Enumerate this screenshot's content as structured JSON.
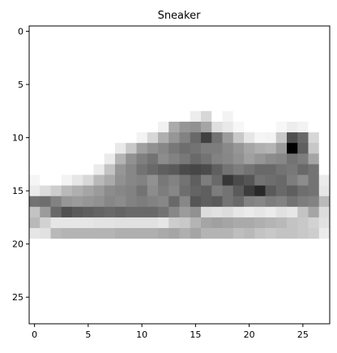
{
  "chart_data": {
    "type": "heatmap",
    "title": "Sneaker",
    "xlabel": "",
    "ylabel": "",
    "colormap": "gray_r",
    "value_range": [
      0,
      255
    ],
    "grid": false,
    "xlim": [
      -0.5,
      27.5
    ],
    "ylim": [
      27.5,
      -0.5
    ],
    "x_ticks": [
      0,
      5,
      10,
      15,
      20,
      25
    ],
    "y_ticks": [
      0,
      5,
      10,
      15,
      20,
      25
    ],
    "x_tick_labels": [
      "0",
      "5",
      "10",
      "15",
      "20",
      "25"
    ],
    "y_tick_labels": [
      "0",
      "5",
      "10",
      "15",
      "20",
      "25"
    ],
    "rows": 28,
    "cols": 28,
    "sparse_nonzero": [
      [
        8,
        15,
        18
      ],
      [
        8,
        16,
        40
      ],
      [
        8,
        18,
        12
      ],
      [
        9,
        12,
        14
      ],
      [
        9,
        13,
        85
      ],
      [
        9,
        14,
        105
      ],
      [
        9,
        15,
        110
      ],
      [
        9,
        16,
        90
      ],
      [
        9,
        17,
        32
      ],
      [
        9,
        18,
        22
      ],
      [
        9,
        19,
        8
      ],
      [
        9,
        23,
        8
      ],
      [
        9,
        24,
        18
      ],
      [
        9,
        25,
        12
      ],
      [
        10,
        10,
        12
      ],
      [
        10,
        11,
        40
      ],
      [
        10,
        12,
        80
      ],
      [
        10,
        13,
        105
      ],
      [
        10,
        14,
        125
      ],
      [
        10,
        15,
        150
      ],
      [
        10,
        16,
        190
      ],
      [
        10,
        17,
        140
      ],
      [
        10,
        18,
        100
      ],
      [
        10,
        19,
        55
      ],
      [
        10,
        20,
        25
      ],
      [
        10,
        21,
        10
      ],
      [
        10,
        22,
        12
      ],
      [
        10,
        23,
        55
      ],
      [
        10,
        24,
        175
      ],
      [
        10,
        25,
        150
      ],
      [
        10,
        26,
        40
      ],
      [
        11,
        8,
        22
      ],
      [
        11,
        9,
        55
      ],
      [
        11,
        10,
        95
      ],
      [
        11,
        11,
        110
      ],
      [
        11,
        12,
        120
      ],
      [
        11,
        13,
        135
      ],
      [
        11,
        14,
        145
      ],
      [
        11,
        15,
        140
      ],
      [
        11,
        16,
        130
      ],
      [
        11,
        17,
        130
      ],
      [
        11,
        18,
        118
      ],
      [
        11,
        19,
        105
      ],
      [
        11,
        20,
        90
      ],
      [
        11,
        21,
        80
      ],
      [
        11,
        22,
        75
      ],
      [
        11,
        23,
        100
      ],
      [
        11,
        24,
        255
      ],
      [
        11,
        25,
        160
      ],
      [
        11,
        26,
        55
      ],
      [
        12,
        7,
        20
      ],
      [
        12,
        8,
        75
      ],
      [
        12,
        9,
        110
      ],
      [
        12,
        10,
        128
      ],
      [
        12,
        11,
        140
      ],
      [
        12,
        12,
        115
      ],
      [
        12,
        13,
        125
      ],
      [
        12,
        14,
        135
      ],
      [
        12,
        15,
        150
      ],
      [
        12,
        16,
        140
      ],
      [
        12,
        17,
        125
      ],
      [
        12,
        18,
        120
      ],
      [
        12,
        19,
        110
      ],
      [
        12,
        20,
        95
      ],
      [
        12,
        21,
        105
      ],
      [
        12,
        22,
        115
      ],
      [
        12,
        23,
        120
      ],
      [
        12,
        24,
        140
      ],
      [
        12,
        25,
        130
      ],
      [
        12,
        26,
        90
      ],
      [
        13,
        6,
        20
      ],
      [
        13,
        7,
        60
      ],
      [
        13,
        8,
        105
      ],
      [
        13,
        9,
        120
      ],
      [
        13,
        10,
        140
      ],
      [
        13,
        11,
        150
      ],
      [
        13,
        12,
        160
      ],
      [
        13,
        13,
        165
      ],
      [
        13,
        14,
        180
      ],
      [
        13,
        15,
        185
      ],
      [
        13,
        16,
        180
      ],
      [
        13,
        17,
        160
      ],
      [
        13,
        18,
        140
      ],
      [
        13,
        19,
        130
      ],
      [
        13,
        20,
        140
      ],
      [
        13,
        21,
        150
      ],
      [
        13,
        22,
        150
      ],
      [
        13,
        23,
        140
      ],
      [
        13,
        24,
        135
      ],
      [
        13,
        25,
        150
      ],
      [
        13,
        26,
        140
      ],
      [
        14,
        0,
        10
      ],
      [
        14,
        3,
        12
      ],
      [
        14,
        4,
        25
      ],
      [
        14,
        5,
        40
      ],
      [
        14,
        6,
        70
      ],
      [
        14,
        7,
        85
      ],
      [
        14,
        8,
        110
      ],
      [
        14,
        9,
        120
      ],
      [
        14,
        10,
        125
      ],
      [
        14,
        11,
        110
      ],
      [
        14,
        12,
        135
      ],
      [
        14,
        13,
        125
      ],
      [
        14,
        14,
        140
      ],
      [
        14,
        15,
        160
      ],
      [
        14,
        16,
        130
      ],
      [
        14,
        17,
        150
      ],
      [
        14,
        18,
        200
      ],
      [
        14,
        19,
        180
      ],
      [
        14,
        20,
        170
      ],
      [
        14,
        21,
        140
      ],
      [
        14,
        22,
        145
      ],
      [
        14,
        23,
        150
      ],
      [
        14,
        24,
        130
      ],
      [
        14,
        25,
        115
      ],
      [
        14,
        26,
        140
      ],
      [
        14,
        27,
        20
      ],
      [
        15,
        0,
        20
      ],
      [
        15,
        1,
        35
      ],
      [
        15,
        2,
        50
      ],
      [
        15,
        3,
        70
      ],
      [
        15,
        4,
        80
      ],
      [
        15,
        5,
        90
      ],
      [
        15,
        6,
        100
      ],
      [
        15,
        7,
        115
      ],
      [
        15,
        8,
        120
      ],
      [
        15,
        9,
        125
      ],
      [
        15,
        10,
        140
      ],
      [
        15,
        11,
        115
      ],
      [
        15,
        12,
        130
      ],
      [
        15,
        13,
        120
      ],
      [
        15,
        14,
        145
      ],
      [
        15,
        15,
        155
      ],
      [
        15,
        16,
        160
      ],
      [
        15,
        17,
        130
      ],
      [
        15,
        18,
        140
      ],
      [
        15,
        19,
        165
      ],
      [
        15,
        20,
        195
      ],
      [
        15,
        21,
        215
      ],
      [
        15,
        22,
        165
      ],
      [
        15,
        23,
        150
      ],
      [
        15,
        24,
        160
      ],
      [
        15,
        25,
        145
      ],
      [
        15,
        26,
        140
      ],
      [
        15,
        27,
        25
      ],
      [
        16,
        0,
        140
      ],
      [
        16,
        1,
        145
      ],
      [
        16,
        2,
        125
      ],
      [
        16,
        3,
        105
      ],
      [
        16,
        4,
        100
      ],
      [
        16,
        5,
        105
      ],
      [
        16,
        6,
        110
      ],
      [
        16,
        7,
        120
      ],
      [
        16,
        8,
        115
      ],
      [
        16,
        9,
        125
      ],
      [
        16,
        10,
        130
      ],
      [
        16,
        11,
        125
      ],
      [
        16,
        12,
        120
      ],
      [
        16,
        13,
        150
      ],
      [
        16,
        14,
        120
      ],
      [
        16,
        15,
        170
      ],
      [
        16,
        16,
        160
      ],
      [
        16,
        17,
        165
      ],
      [
        16,
        18,
        140
      ],
      [
        16,
        19,
        150
      ],
      [
        16,
        20,
        125
      ],
      [
        16,
        21,
        120
      ],
      [
        16,
        22,
        130
      ],
      [
        16,
        23,
        125
      ],
      [
        16,
        24,
        140
      ],
      [
        16,
        25,
        130
      ],
      [
        16,
        26,
        125
      ],
      [
        16,
        27,
        70
      ],
      [
        17,
        0,
        60
      ],
      [
        17,
        1,
        100
      ],
      [
        17,
        2,
        150
      ],
      [
        17,
        3,
        175
      ],
      [
        17,
        4,
        165
      ],
      [
        17,
        5,
        160
      ],
      [
        17,
        6,
        155
      ],
      [
        17,
        7,
        150
      ],
      [
        17,
        8,
        155
      ],
      [
        17,
        9,
        150
      ],
      [
        17,
        10,
        150
      ],
      [
        17,
        11,
        150
      ],
      [
        17,
        12,
        140
      ],
      [
        17,
        13,
        120
      ],
      [
        17,
        14,
        100
      ],
      [
        17,
        15,
        110
      ],
      [
        17,
        16,
        35
      ],
      [
        17,
        17,
        30
      ],
      [
        17,
        18,
        35
      ],
      [
        17,
        19,
        25
      ],
      [
        17,
        20,
        20
      ],
      [
        17,
        21,
        25
      ],
      [
        17,
        22,
        20
      ],
      [
        17,
        23,
        30
      ],
      [
        17,
        24,
        25
      ],
      [
        17,
        25,
        60
      ],
      [
        17,
        26,
        90
      ],
      [
        17,
        27,
        35
      ],
      [
        18,
        0,
        70
      ],
      [
        18,
        1,
        45
      ],
      [
        18,
        2,
        25
      ],
      [
        18,
        3,
        25
      ],
      [
        18,
        4,
        25
      ],
      [
        18,
        5,
        25
      ],
      [
        18,
        6,
        28
      ],
      [
        18,
        7,
        28
      ],
      [
        18,
        8,
        30
      ],
      [
        18,
        9,
        30
      ],
      [
        18,
        10,
        30
      ],
      [
        18,
        11,
        30
      ],
      [
        18,
        12,
        25
      ],
      [
        18,
        13,
        50
      ],
      [
        18,
        14,
        55
      ],
      [
        18,
        15,
        75
      ],
      [
        18,
        16,
        90
      ],
      [
        18,
        17,
        95
      ],
      [
        18,
        18,
        90
      ],
      [
        18,
        19,
        85
      ],
      [
        18,
        20,
        85
      ],
      [
        18,
        21,
        80
      ],
      [
        18,
        22,
        75
      ],
      [
        18,
        23,
        70
      ],
      [
        18,
        24,
        60
      ],
      [
        18,
        25,
        55
      ],
      [
        18,
        26,
        45
      ],
      [
        18,
        27,
        30
      ],
      [
        19,
        0,
        25
      ],
      [
        19,
        1,
        30
      ],
      [
        19,
        2,
        70
      ],
      [
        19,
        3,
        75
      ],
      [
        19,
        4,
        75
      ],
      [
        19,
        5,
        75
      ],
      [
        19,
        6,
        75
      ],
      [
        19,
        7,
        75
      ],
      [
        19,
        8,
        80
      ],
      [
        19,
        9,
        80
      ],
      [
        19,
        10,
        80
      ],
      [
        19,
        11,
        80
      ],
      [
        19,
        12,
        85
      ],
      [
        19,
        13,
        90
      ],
      [
        19,
        14,
        80
      ],
      [
        19,
        15,
        90
      ],
      [
        19,
        16,
        75
      ],
      [
        19,
        17,
        75
      ],
      [
        19,
        18,
        75
      ],
      [
        19,
        19,
        65
      ],
      [
        19,
        20,
        70
      ],
      [
        19,
        21,
        60
      ],
      [
        19,
        22,
        55
      ],
      [
        19,
        23,
        60
      ],
      [
        19,
        24,
        60
      ],
      [
        19,
        25,
        55
      ],
      [
        19,
        26,
        50
      ],
      [
        19,
        27,
        20
      ]
    ]
  }
}
